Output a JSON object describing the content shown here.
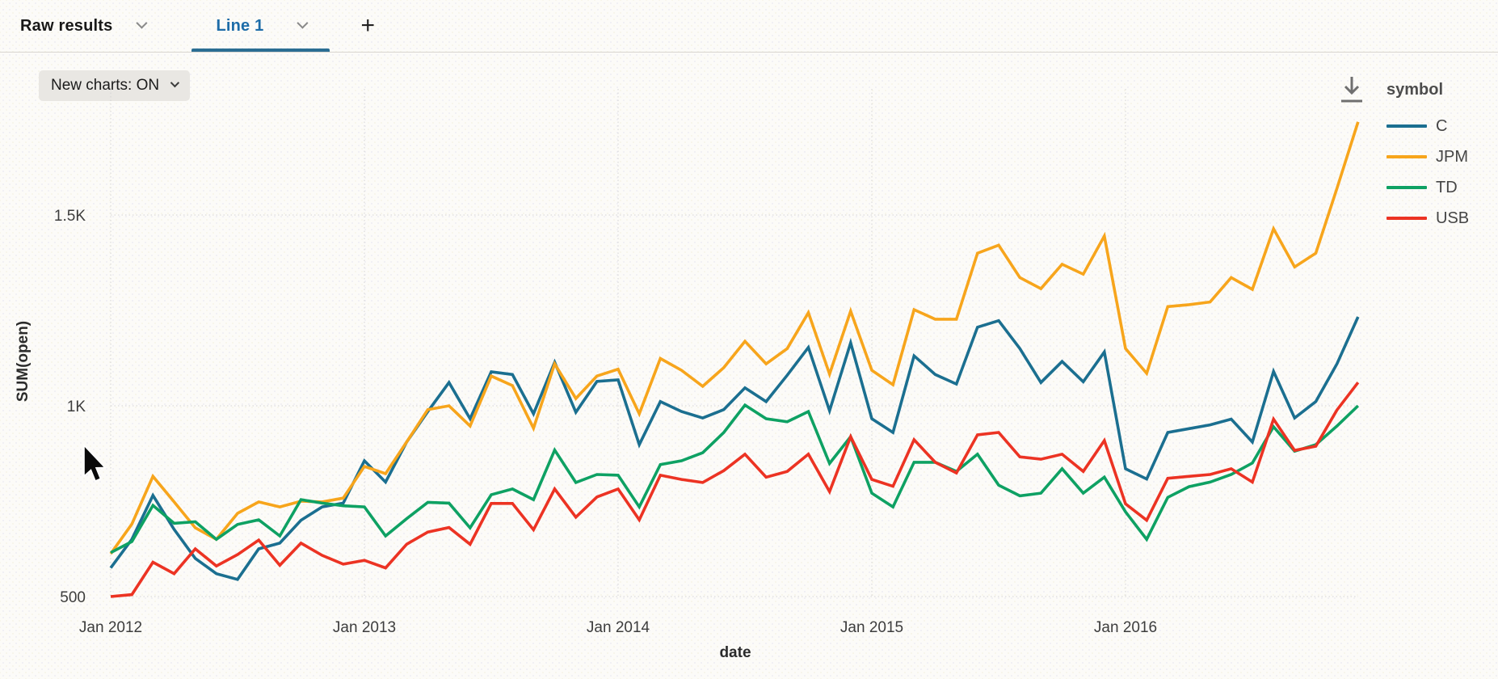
{
  "tab_bar": {
    "tabs": [
      {
        "id": "raw-results",
        "label": "Raw results",
        "active": false
      },
      {
        "id": "line-1",
        "label": "Line 1",
        "active": true
      }
    ],
    "add_tab_label": "+"
  },
  "toolbar": {
    "new_charts_button": "New charts: ON"
  },
  "legend": {
    "title": "symbol",
    "items": [
      {
        "label": "C",
        "color": "#1b6f90"
      },
      {
        "label": "JPM",
        "color": "#f7a51c"
      },
      {
        "label": "TD",
        "color": "#0ea163"
      },
      {
        "label": "USB",
        "color": "#ec3323"
      }
    ]
  },
  "chart_data": {
    "type": "line",
    "xlabel": "date",
    "ylabel": "SUM(open)",
    "x_unit": "month",
    "x_range": [
      "Jan 2012",
      "Dec 2016"
    ],
    "x_tick_labels": [
      "Jan 2012",
      "Jan 2013",
      "Jan 2014",
      "Jan 2015",
      "Jan 2016"
    ],
    "x_tick_month_index": [
      0,
      12,
      24,
      36,
      48
    ],
    "y_ticks": [
      {
        "label": "500",
        "value": 500
      },
      {
        "label": "1K",
        "value": 1000
      },
      {
        "label": "1.5K",
        "value": 1500
      }
    ],
    "ylim": [
      430,
      1830
    ],
    "grid": true,
    "legend_position": "top-right",
    "series": [
      {
        "name": "C",
        "color": "#1b6f90",
        "values": [
          575,
          650,
          765,
          676,
          600,
          560,
          545,
          625,
          640,
          700,
          735,
          745,
          856,
          800,
          905,
          985,
          1061,
          966,
          1089,
          1082,
          979,
          1114,
          983,
          1064,
          1068,
          898,
          1011,
          985,
          968,
          990,
          1047,
          1011,
          1080,
          1153,
          987,
          1165,
          966,
          930,
          1131,
          1082,
          1057,
          1206,
          1223,
          1150,
          1061,
          1116,
          1063,
          1141,
          835,
          808,
          930,
          940,
          950,
          965,
          905,
          1090,
          968,
          1011,
          1110,
          1233
        ]
      },
      {
        "name": "JPM",
        "color": "#f7a51c",
        "values": [
          612,
          690,
          815,
          748,
          680,
          650,
          718,
          748,
          735,
          750,
          748,
          758,
          841,
          822,
          905,
          990,
          1000,
          947,
          1078,
          1053,
          941,
          1110,
          1019,
          1078,
          1096,
          979,
          1124,
          1093,
          1051,
          1100,
          1169,
          1110,
          1150,
          1244,
          1083,
          1248,
          1093,
          1055,
          1252,
          1227,
          1227,
          1400,
          1421,
          1336,
          1307,
          1371,
          1345,
          1445,
          1150,
          1085,
          1260,
          1265,
          1272,
          1336,
          1305,
          1464,
          1364,
          1400,
          1570,
          1744
        ]
      },
      {
        "name": "TD",
        "color": "#0ea163",
        "values": [
          615,
          644,
          739,
          692,
          696,
          650,
          689,
          701,
          659,
          754,
          745,
          738,
          735,
          659,
          704,
          747,
          745,
          680,
          767,
          782,
          754,
          884,
          799,
          820,
          818,
          735,
          846,
          856,
          877,
          930,
          1002,
          966,
          958,
          985,
          849,
          919,
          771,
          735,
          852,
          852,
          828,
          873,
          792,
          764,
          771,
          835,
          771,
          813,
          722,
          650,
          760,
          788,
          800,
          820,
          850,
          945,
          881,
          898,
          947,
          1000
        ]
      },
      {
        "name": "USB",
        "color": "#ec3323",
        "values": [
          500,
          505,
          590,
          560,
          625,
          580,
          610,
          648,
          582,
          640,
          608,
          585,
          595,
          575,
          637,
          669,
          681,
          637,
          744,
          744,
          675,
          782,
          708,
          761,
          782,
          701,
          818,
          807,
          799,
          830,
          873,
          813,
          828,
          873,
          775,
          919,
          807,
          789,
          911,
          852,
          824,
          924,
          930,
          866,
          860,
          873,
          828,
          909,
          743,
          700,
          810,
          815,
          820,
          835,
          800,
          965,
          883,
          894,
          989,
          1061
        ]
      }
    ]
  }
}
